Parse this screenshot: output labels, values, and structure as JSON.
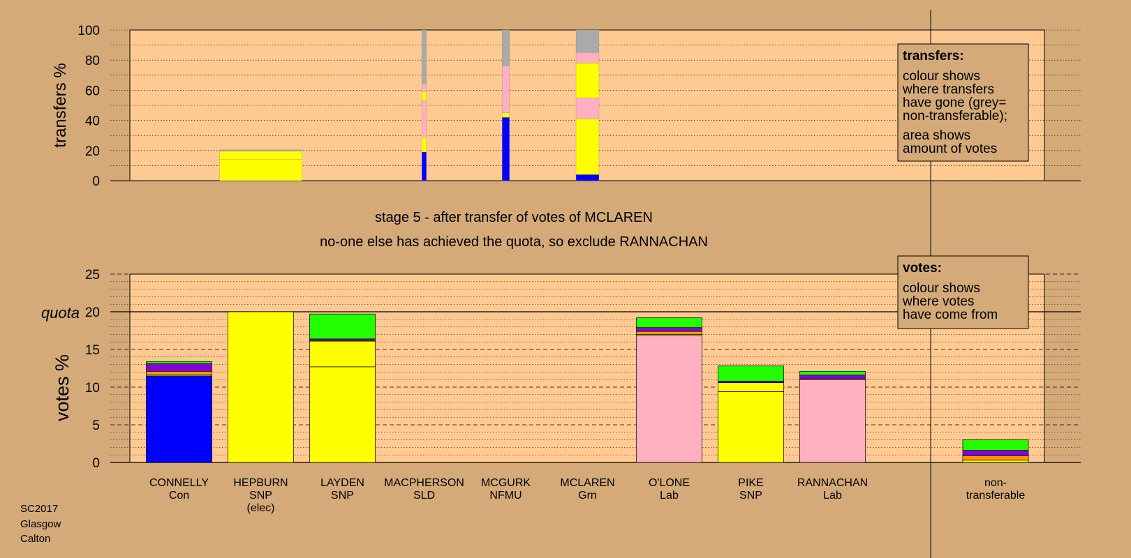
{
  "colors": {
    "background": "#d4aa78",
    "plot": "#ffc992",
    "Con": "#0000ff",
    "SNP": "#ffff00",
    "Lab": "#ffb0c0",
    "Grn": "#22ff00",
    "SLD": "#ff9900",
    "NFMU": "#8800dd",
    "nontransferable": "#aaaaaa"
  },
  "heading": {
    "stage": "stage 5 - after transfer of votes of MCLAREN",
    "note": "no-one else has achieved the quota, so exclude RANNACHAN"
  },
  "footer": [
    "SC2017",
    "Glasgow",
    "Calton"
  ],
  "chart_data": [
    {
      "type": "bar",
      "name": "transfers",
      "ylabel": "transfers %",
      "ylim": [
        0,
        100
      ],
      "yticks": [
        0,
        20,
        40,
        60,
        80,
        100
      ],
      "grid": "dotted every 10",
      "legend": {
        "title": "transfers:",
        "lines1": [
          "colour shows",
          "where transfers",
          "have gone (grey=",
          "non-transferable);"
        ],
        "lines2": [
          "area shows",
          "amount of votes"
        ],
        "placement": "top-right"
      },
      "bars": [
        {
          "candidate": "HEPBURN",
          "width_pct": 100,
          "segments": [
            {
              "party": "SNP",
              "from": 0,
              "to": 14
            },
            {
              "party": "SNP",
              "from": 14,
              "to": 19.5
            },
            {
              "party": "nontransferable",
              "from": 19.5,
              "to": 20.5
            }
          ]
        },
        {
          "candidate": "MACPHERSON",
          "width_pct": 7,
          "segments": [
            {
              "party": "Con",
              "from": 0,
              "to": 19
            },
            {
              "party": "SNP",
              "from": 19,
              "to": 29
            },
            {
              "party": "Lab",
              "from": 29,
              "to": 53
            },
            {
              "party": "SNP",
              "from": 53,
              "to": 59
            },
            {
              "party": "Lab",
              "from": 59,
              "to": 64
            },
            {
              "party": "nontransferable",
              "from": 64,
              "to": 100
            }
          ]
        },
        {
          "candidate": "MCGURK",
          "width_pct": 11,
          "segments": [
            {
              "party": "Con",
              "from": 0,
              "to": 42
            },
            {
              "party": "SNP",
              "from": 42,
              "to": 45
            },
            {
              "party": "Lab",
              "from": 45,
              "to": 76
            },
            {
              "party": "nontransferable",
              "from": 76,
              "to": 100
            }
          ]
        },
        {
          "candidate": "MCLAREN",
          "width_pct": 35,
          "segments": [
            {
              "party": "Con",
              "from": 0,
              "to": 4
            },
            {
              "party": "SNP",
              "from": 4,
              "to": 41
            },
            {
              "party": "Lab",
              "from": 41,
              "to": 55
            },
            {
              "party": "SNP",
              "from": 55,
              "to": 78
            },
            {
              "party": "Lab",
              "from": 78,
              "to": 85
            },
            {
              "party": "nontransferable",
              "from": 85,
              "to": 100
            }
          ]
        }
      ]
    },
    {
      "type": "bar",
      "name": "votes",
      "ylabel": "votes %",
      "ylim": [
        0,
        25
      ],
      "yticks": [
        0,
        5,
        10,
        15,
        20,
        25
      ],
      "quota": 20,
      "quota_label": "quota",
      "grid": "dotted every 1, dashed every 5",
      "legend": {
        "title": "votes:",
        "lines1": [
          "colour shows",
          "where votes",
          "have come from"
        ],
        "placement": "top-right"
      },
      "categories": [
        {
          "name": "CONNELLY",
          "party": "Con",
          "status": ""
        },
        {
          "name": "HEPBURN",
          "party": "SNP",
          "status": "(elec)"
        },
        {
          "name": "LAYDEN",
          "party": "SNP",
          "status": ""
        },
        {
          "name": "MACPHERSON",
          "party": "SLD",
          "status": ""
        },
        {
          "name": "MCGURK",
          "party": "NFMU",
          "status": ""
        },
        {
          "name": "MCLAREN",
          "party": "Grn",
          "status": ""
        },
        {
          "name": "O'LONE",
          "party": "Lab",
          "status": ""
        },
        {
          "name": "PIKE",
          "party": "SNP",
          "status": ""
        },
        {
          "name": "RANNACHAN",
          "party": "Lab",
          "status": ""
        },
        {
          "name": "non-",
          "party": "transferable",
          "status": ""
        }
      ],
      "stacks": [
        [
          {
            "party": "Con",
            "value": 11.5
          },
          {
            "party": "SNP",
            "value": 0.2
          },
          {
            "party": "SLD",
            "value": 0.4
          },
          {
            "party": "NFMU",
            "value": 1.0
          },
          {
            "party": "Grn",
            "value": 0.3
          }
        ],
        [
          {
            "party": "SNP",
            "value": 20.0
          }
        ],
        [
          {
            "party": "SNP",
            "value": 12.7
          },
          {
            "party": "SNP",
            "value": 3.4
          },
          {
            "party": "SLD",
            "value": 0.1
          },
          {
            "party": "NFMU",
            "value": 0.2
          },
          {
            "party": "Grn",
            "value": 3.3
          }
        ],
        [],
        [],
        [],
        [
          {
            "party": "Lab",
            "value": 16.8
          },
          {
            "party": "SNP",
            "value": 0.2
          },
          {
            "party": "SLD",
            "value": 0.4
          },
          {
            "party": "NFMU",
            "value": 0.5
          },
          {
            "party": "Grn",
            "value": 1.3
          }
        ],
        [
          {
            "party": "SNP",
            "value": 9.4
          },
          {
            "party": "SNP",
            "value": 1.2
          },
          {
            "party": "NFMU",
            "value": 0.2
          },
          {
            "party": "Grn",
            "value": 2.0
          }
        ],
        [
          {
            "party": "Lab",
            "value": 11.0
          },
          {
            "party": "SLD",
            "value": 0.1
          },
          {
            "party": "NFMU",
            "value": 0.5
          },
          {
            "party": "Grn",
            "value": 0.5
          }
        ],
        [
          {
            "party": "SNP",
            "value": 0.3
          },
          {
            "party": "SLD",
            "value": 0.6
          },
          {
            "party": "NFMU",
            "value": 0.7
          },
          {
            "party": "Grn",
            "value": 1.4
          }
        ]
      ]
    }
  ]
}
